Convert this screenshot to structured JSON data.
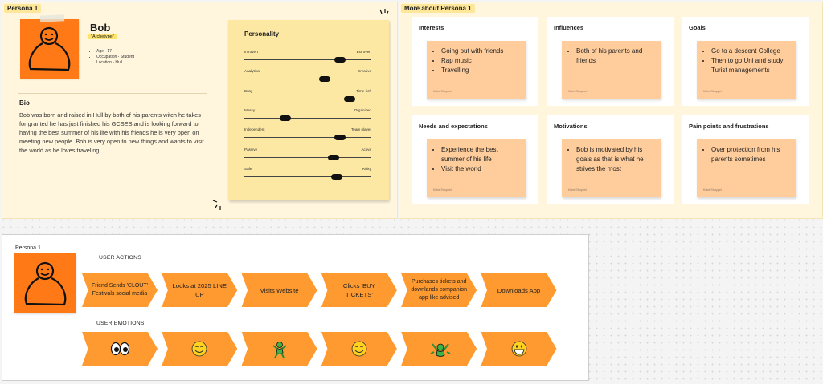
{
  "persona_section": {
    "label": "Persona 1",
    "name": "Bob",
    "archetype": "\"Archetype\"",
    "facts": [
      "Age - 17",
      "Occupation - Student",
      "Location - Hull"
    ],
    "bio_title": "Bio",
    "bio_text": "Bob was born and raised in Hull by both of his parents witch he takes for granted he has just finished his GCSES and is looking forward to having the best summer of his life with his friends he is very open on meeting new people. Bob is very open to new things and wants to visit the world as he loves traveling.",
    "personality": {
      "title": "Personality",
      "traits": [
        {
          "left": "Introvert",
          "right": "Extrovert",
          "level": 0.75
        },
        {
          "left": "Analytical",
          "right": "Creative",
          "level": 0.63
        },
        {
          "left": "Busy",
          "right": "Time rich",
          "level": 0.83
        },
        {
          "left": "Messy",
          "right": "Organized",
          "level": 0.32
        },
        {
          "left": "Independent",
          "right": "Team player",
          "level": 0.75
        },
        {
          "left": "Passive",
          "right": "Active",
          "level": 0.7
        },
        {
          "left": "Safe",
          "right": "Risky",
          "level": 0.73
        }
      ]
    }
  },
  "more_section": {
    "label": "More about Persona 1",
    "author": "Kobe Stroppel",
    "cards": [
      {
        "title": "Interests",
        "items": [
          "Going out with friends",
          "Rap music",
          "Travelling"
        ]
      },
      {
        "title": "Influences",
        "items": [
          "Both of his parents and friends"
        ]
      },
      {
        "title": "Goals",
        "items": [
          "Go to a descent College",
          "Then to go Uni and study Turist managements"
        ]
      },
      {
        "title": "Needs and expectations",
        "items": [
          "Experience the best summer of his life",
          "Visit the world"
        ]
      },
      {
        "title": "Motivations",
        "items": [
          "Bob is motivated by his goals as that is what he strives the most"
        ]
      },
      {
        "title": "Pain points and frustrations",
        "items": [
          "Over protection from his parents sometimes"
        ]
      }
    ]
  },
  "journey": {
    "label": "Persona 1",
    "actions_label": "USER ACTIONS",
    "emotions_label": "USER EMOTIONS",
    "actions": [
      "Friend Sends 'CLOUT' Festivals social media",
      "Looks at 2025 LINE UP",
      "Visits Website",
      "Clicks 'BUY TICKETS'",
      "Purchases tickets and downlands companion app like advised",
      "Downloads App"
    ],
    "emotions": [
      "eyes-icon",
      "smile-icon",
      "dancing-icon",
      "smile-icon",
      "celebrate-icon",
      "grin-icon"
    ]
  },
  "colors": {
    "orange": "#ff7a16",
    "chevron": "#ff9a30",
    "sticky": "#ffcd9c",
    "personality_card": "#fde8a3",
    "section_bg": "#fff6dd"
  }
}
